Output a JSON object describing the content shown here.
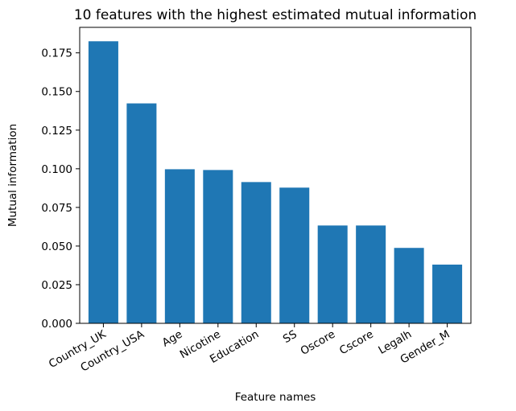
{
  "chart_data": {
    "type": "bar",
    "title": "10 features with the highest estimated mutual information",
    "xlabel": "Feature names",
    "ylabel": "Mutual information",
    "categories": [
      "Country_UK",
      "Country_USA",
      "Age",
      "Nicotine",
      "Education",
      "SS",
      "Oscore",
      "Cscore",
      "Legalh",
      "Gender_M"
    ],
    "values": [
      0.1825,
      0.1423,
      0.0997,
      0.0992,
      0.0914,
      0.0878,
      0.0633,
      0.0633,
      0.0488,
      0.038
    ],
    "ylim": [
      0,
      0.1915
    ],
    "yticks": [
      0.0,
      0.025,
      0.05,
      0.075,
      0.1,
      0.125,
      0.15,
      0.175
    ],
    "ytick_labels": [
      "0.000",
      "0.025",
      "0.050",
      "0.075",
      "0.100",
      "0.125",
      "0.150",
      "0.175"
    ],
    "bar_color": "#1f77b4",
    "x_tick_rotation": 30,
    "grid": false,
    "legend": "none"
  }
}
